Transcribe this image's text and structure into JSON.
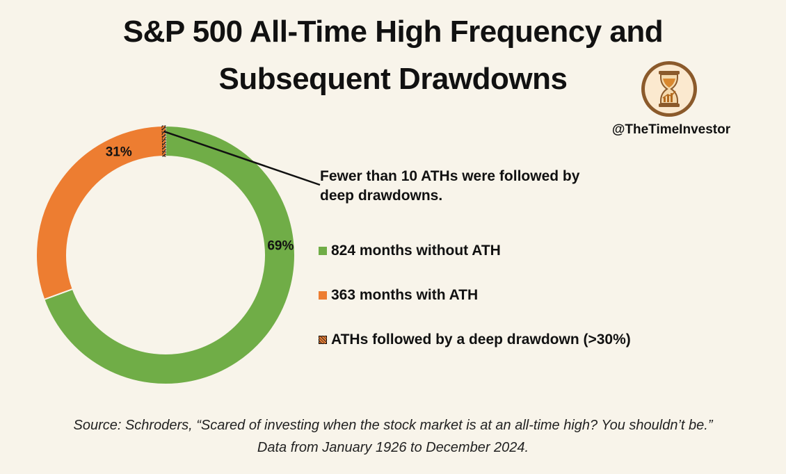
{
  "header": {
    "title_line1": "S&P 500 All-Time High Frequency and",
    "title_line2": "Subsequent Drawdowns"
  },
  "brand": {
    "handle": "@TheTimeInvestor",
    "logo_icon": "hourglass-chart-icon",
    "logo_colors": {
      "ring": "#8b5a2b",
      "fill": "#fbe9cf"
    }
  },
  "chart_data": {
    "type": "pie",
    "variant": "donut",
    "slices": [
      {
        "label": "824 months without ATH",
        "value": 824,
        "percent_label": "69%",
        "color": "#70ad47"
      },
      {
        "label": "363 months with ATH",
        "value": 363,
        "percent_label": "31%",
        "color": "#ed7d31"
      }
    ],
    "highlight": {
      "label": "ATHs followed by a deep drawdown (>30%)",
      "color": "#ed7d31",
      "pattern": "hatched"
    },
    "annotation": "Fewer than 10 ATHs were followed by deep drawdowns.",
    "legend_position": "right"
  },
  "legend": {
    "items": [
      {
        "label": "824 months without ATH",
        "color": "#70ad47"
      },
      {
        "label": "363 months with ATH",
        "color": "#ed7d31"
      },
      {
        "label": "ATHs followed by a deep drawdown (>30%)",
        "color": "#ed7d31",
        "pattern": "hatched"
      }
    ]
  },
  "footer": {
    "source_line1": "Source: Schroders, “Scared of investing when the stock market is at an all-time high? You shouldn’t be.”",
    "source_line2": "Data from January 1926 to December 2024."
  }
}
